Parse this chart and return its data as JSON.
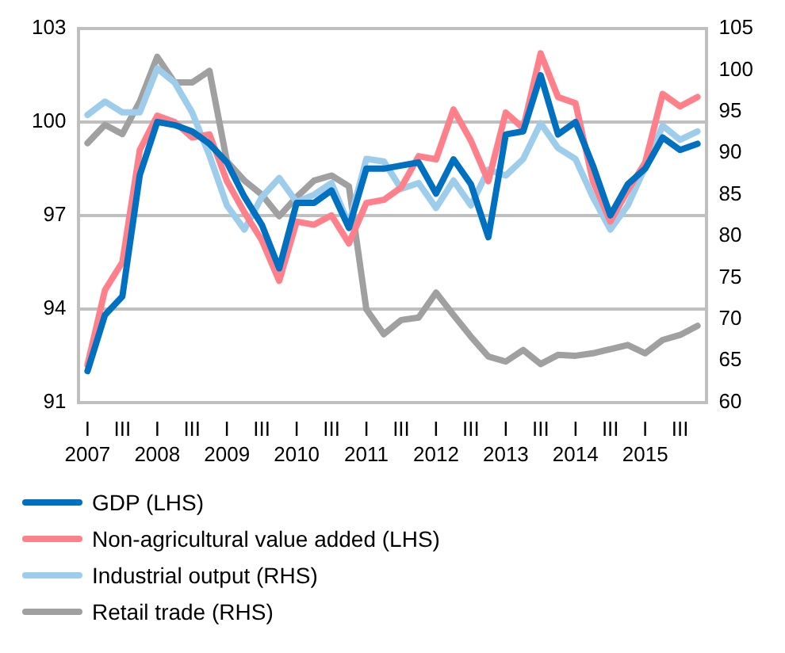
{
  "chart_data": {
    "type": "line",
    "categories": [
      "I\n2007",
      null,
      "III",
      null,
      "I\n2008",
      null,
      "III",
      null,
      "I\n2009",
      null,
      "III",
      null,
      "I\n2010",
      null,
      "III",
      null,
      "I\n2011",
      null,
      "III",
      null,
      "I\n2012",
      null,
      "III",
      null,
      "I\n2013",
      null,
      "III",
      null,
      "I\n2014",
      null,
      "III",
      null,
      "I\n2015",
      null,
      "III",
      null
    ],
    "series": [
      {
        "name": "GDP (LHS)",
        "color": "#0070c0",
        "values": [
          92.0,
          93.8,
          94.4,
          98.3,
          100.0,
          99.9,
          99.7,
          99.3,
          98.7,
          97.6,
          96.7,
          95.3,
          97.4,
          97.4,
          97.8,
          96.6,
          98.5,
          98.5,
          98.6,
          98.7,
          97.7,
          98.8,
          98.0,
          96.3,
          99.6,
          99.7,
          101.5,
          99.6,
          100.0,
          98.6,
          97.0,
          98.0,
          98.5,
          99.5,
          99.1,
          99.3
        ]
      },
      {
        "name": "Non-agricultural value added (LHS)",
        "color": "#ff7f8a",
        "values": [
          92.2,
          94.6,
          95.5,
          99.1,
          100.2,
          100.0,
          99.5,
          99.6,
          98.1,
          97.1,
          96.2,
          94.9,
          96.8,
          96.7,
          97.0,
          96.1,
          97.4,
          97.5,
          97.9,
          98.9,
          98.8,
          100.4,
          99.4,
          98.1,
          100.3,
          99.8,
          102.2,
          100.8,
          100.6,
          98.1,
          96.8,
          97.8,
          98.7,
          100.9,
          100.5,
          100.8
        ]
      },
      {
        "name": "Industrial output (RHS)",
        "color": "#9dcdeb",
        "axis": "y2",
        "values": [
          94.6,
          96.2,
          94.9,
          94.9,
          100.2,
          98.5,
          94.9,
          89.7,
          83.7,
          80.8,
          84.7,
          87.0,
          84.1,
          85.0,
          86.4,
          81.4,
          89.3,
          89.0,
          85.7,
          86.4,
          83.4,
          86.7,
          83.7,
          88.0,
          87.3,
          89.3,
          93.6,
          90.6,
          89.3,
          84.7,
          80.8,
          83.7,
          88.3,
          93.3,
          91.6,
          92.6
        ]
      },
      {
        "name": "Retail trade (RHS)",
        "color": "#a0a0a0",
        "axis": "y2",
        "values": [
          91.2,
          93.4,
          92.3,
          96.2,
          101.6,
          98.5,
          98.5,
          99.9,
          89.0,
          86.7,
          85.0,
          82.4,
          84.7,
          86.7,
          87.3,
          86.0,
          71.2,
          68.2,
          69.9,
          70.2,
          73.2,
          70.5,
          67.9,
          65.5,
          64.9,
          66.3,
          64.6,
          65.7,
          65.6,
          65.9,
          66.4,
          66.9,
          65.9,
          67.5,
          68.1,
          69.2
        ]
      }
    ],
    "ylim": [
      91,
      103
    ],
    "yticks": [
      91,
      94,
      97,
      100,
      103
    ],
    "y2lim": [
      60,
      105
    ],
    "y2ticks": [
      60,
      65,
      70,
      75,
      80,
      85,
      90,
      95,
      100,
      105
    ],
    "grid": "y",
    "legend": "bottom",
    "marker": "none",
    "line_style": "solid"
  }
}
